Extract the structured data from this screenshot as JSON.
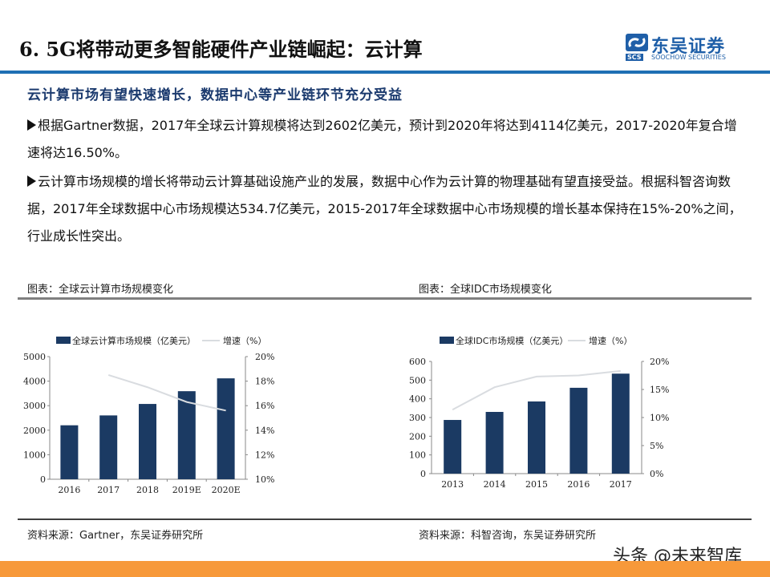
{
  "header": {
    "title": "6. 5G将带动更多智能硬件产业链崛起：云计算",
    "logo": {
      "cn": "东吴证券",
      "en": "SOOCHOW SECURITIES",
      "abbr": "SCS",
      "color": "#1f5fa8"
    }
  },
  "content": {
    "subheading": "云计算市场有望快速增长，数据中心等产业链环节充分受益",
    "bullets": [
      "根据Gartner数据，2017年全球云计算规模将达到2602亿美元，预计到2020年将达到4114亿美元，2017-2020年复合增速将达16.50%。",
      "云计算市场规模的增长将带动云计算基础设施产业的发展，数据中心作为云计算的物理基础有望直接受益。根据科智咨询数据，2017年全球数据中心市场规模达534.7亿美元，2015-2017年全球数据中心市场规模的增长基本保持在15%-20%之间，行业成长性突出。"
    ]
  },
  "figures": {
    "left_label": "图表：全球云计算市场规模变化",
    "right_label": "图表：全球IDC市场规模变化",
    "left_source": "资料来源：Gartner，东吴证券研究所",
    "right_source": "资料来源：科智咨询，东吴证券研究所"
  },
  "watermark": "头条 @未来智库",
  "colors": {
    "accent_blue": "#1f6fb4",
    "bar": "#1b3a63",
    "line": "#d9dce0",
    "footer_band": "#f7993a"
  },
  "chart_data": [
    {
      "type": "bar",
      "title": "全球云计算市场规模变化",
      "categories": [
        "2016",
        "2017",
        "2018",
        "2019E",
        "2020E"
      ],
      "series": [
        {
          "name": "全球云计算市场规模（亿美元）",
          "type": "bar",
          "axis": "left",
          "values": [
            2200,
            2602,
            3070,
            3590,
            4114
          ]
        },
        {
          "name": "增速（%）",
          "type": "line",
          "axis": "right",
          "values": [
            null,
            18.5,
            17.5,
            16.3,
            15.6
          ]
        }
      ],
      "y_left": {
        "ylim": [
          0,
          5000
        ],
        "ticks": [
          "0",
          "1000",
          "2000",
          "3000",
          "4000",
          "5000"
        ]
      },
      "y_right": {
        "ylim": [
          10,
          20
        ],
        "ticks": [
          "10%",
          "12%",
          "14%",
          "16%",
          "18%",
          "20%"
        ]
      },
      "xlabel": "",
      "ylabel": "",
      "legend_position": "top",
      "grid": false
    },
    {
      "type": "bar",
      "title": "全球IDC市场规模变化",
      "categories": [
        "2013",
        "2014",
        "2015",
        "2016",
        "2017"
      ],
      "series": [
        {
          "name": "全球IDC市场规模（亿美元）",
          "type": "bar",
          "axis": "left",
          "values": [
            287,
            330,
            386,
            459,
            534.7
          ]
        },
        {
          "name": "增速（%）",
          "type": "line",
          "axis": "right",
          "values": [
            11.4,
            15.4,
            17.3,
            17.5,
            18.3
          ]
        }
      ],
      "y_left": {
        "ylim": [
          0,
          600
        ],
        "ticks": [
          "0",
          "100",
          "200",
          "300",
          "400",
          "500",
          "600"
        ]
      },
      "y_right": {
        "ylim": [
          0,
          20
        ],
        "ticks": [
          "0%",
          "5%",
          "10%",
          "15%",
          "20%"
        ]
      },
      "xlabel": "",
      "ylabel": "",
      "legend_position": "top",
      "grid": false
    }
  ]
}
